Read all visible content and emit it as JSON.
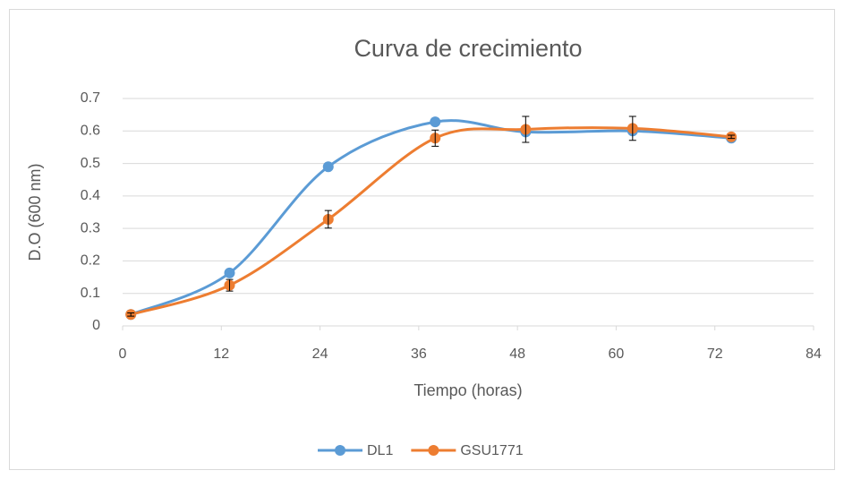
{
  "chart_data": {
    "type": "line",
    "title": "Curva de crecimiento",
    "x_label": "Tiempo (horas)",
    "y_label": "D.O (600 nm)",
    "x": [
      1,
      13,
      25,
      38,
      49,
      62,
      74
    ],
    "series": [
      {
        "name": "DL1",
        "color": "#5b9bd5",
        "values": [
          0.035,
          0.163,
          0.49,
          0.628,
          0.597,
          0.6,
          0.578
        ]
      },
      {
        "name": "GSU1771",
        "color": "#ed7d31",
        "values": [
          0.035,
          0.125,
          0.328,
          0.578,
          0.605,
          0.608,
          0.582
        ],
        "errors": [
          0.005,
          0.018,
          0.027,
          0.025,
          0.04,
          0.037,
          0.005
        ]
      }
    ],
    "xlim": [
      0,
      84
    ],
    "xticks": [
      0,
      12,
      24,
      36,
      48,
      60,
      72,
      84
    ],
    "ylim": [
      0,
      0.7
    ],
    "yticks": [
      0,
      0.1,
      0.2,
      0.3,
      0.4,
      0.5,
      0.6,
      0.7
    ],
    "grid": true,
    "smooth": true,
    "legend": "bottom"
  }
}
